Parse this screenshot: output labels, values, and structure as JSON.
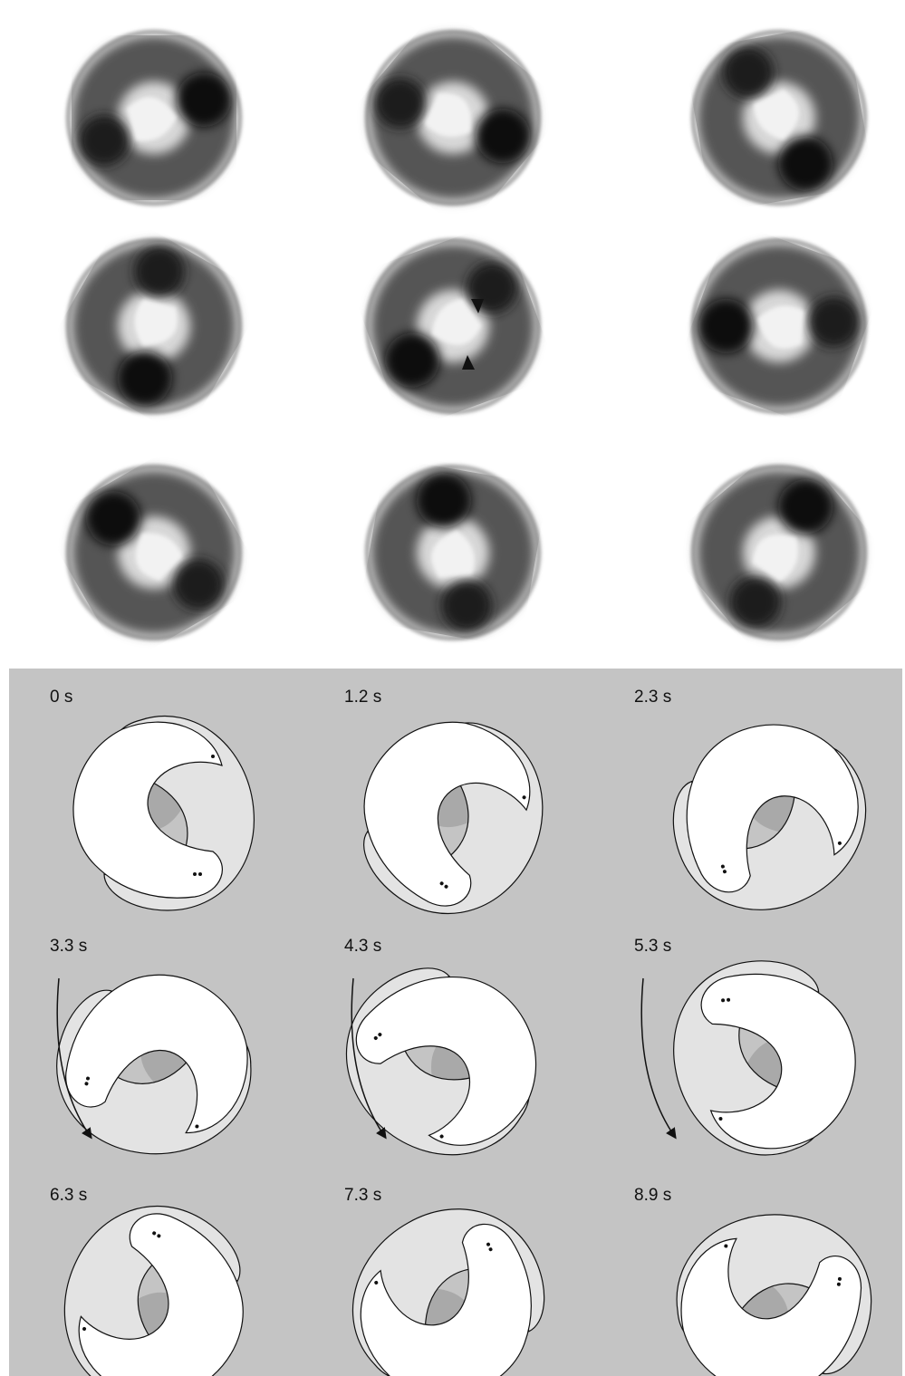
{
  "panels": [
    {
      "time": "0 s"
    },
    {
      "time": "1.2 s"
    },
    {
      "time": "2.3 s"
    },
    {
      "time": "3.3 s"
    },
    {
      "time": "4.3 s"
    },
    {
      "time": "5.3 s"
    },
    {
      "time": "6.3 s"
    },
    {
      "time": "7.3 s"
    },
    {
      "time": "8.9 s"
    }
  ]
}
